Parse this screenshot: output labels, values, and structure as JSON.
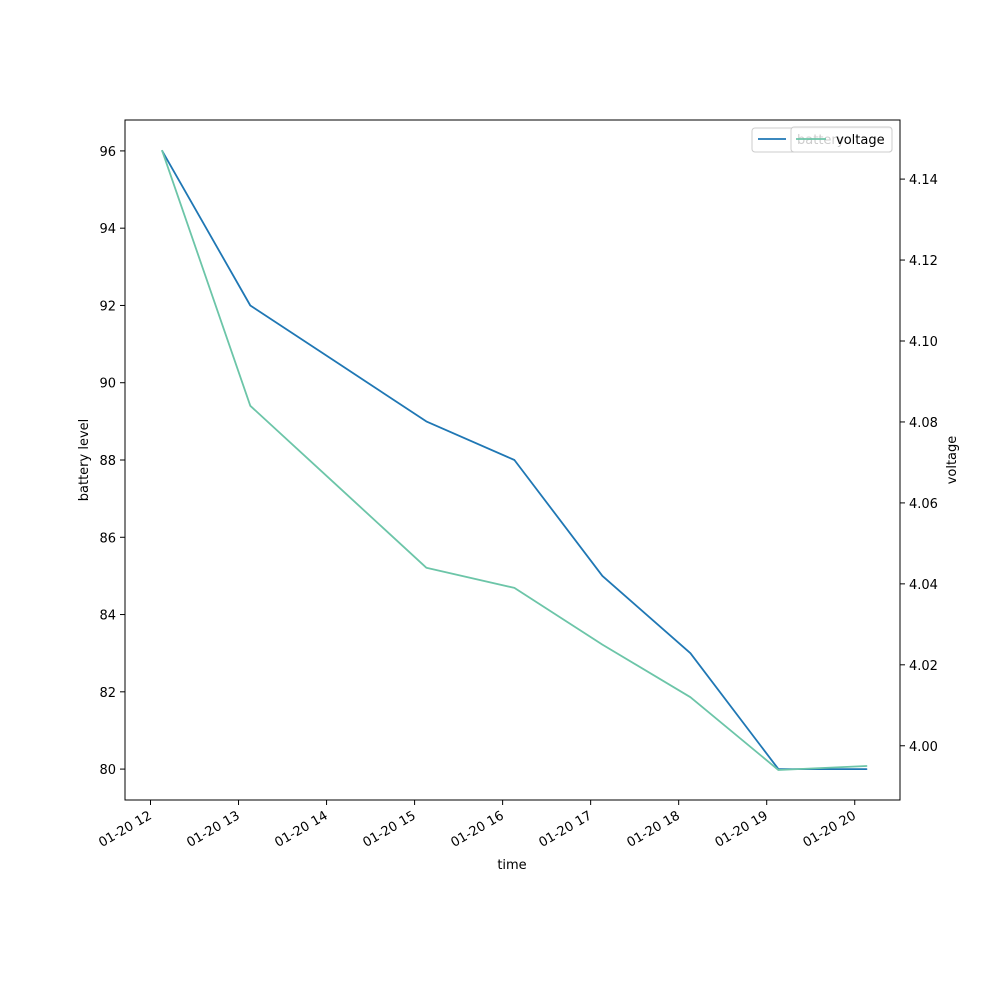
{
  "chart_data": {
    "type": "line",
    "x_type": "datetime",
    "x": [
      "01-20 12:08",
      "01-20 13:08",
      "01-20 14:08",
      "01-20 15:08",
      "01-20 16:08",
      "01-20 17:08",
      "01-20 18:08",
      "01-20 19:08",
      "01-20 20:08"
    ],
    "x_ticks": [
      "01-20 12",
      "01-20 13",
      "01-20 14",
      "01-20 15",
      "01-20 16",
      "01-20 17",
      "01-20 18",
      "01-20 19",
      "01-20 20"
    ],
    "xlabel": "time",
    "ylabel": "battery level",
    "y2label": "voltage",
    "ylim": [
      79.2,
      96.8
    ],
    "y2lim": [
      3.9866,
      4.1546
    ],
    "y_ticks": [
      80,
      82,
      84,
      86,
      88,
      90,
      92,
      94,
      96
    ],
    "y2_ticks": [
      "4.00",
      "4.02",
      "4.04",
      "4.06",
      "4.08",
      "4.10",
      "4.12",
      "4.14"
    ],
    "grid": false,
    "series": [
      {
        "name": "battery",
        "axis": "left",
        "color": "#1f77b4",
        "values": [
          96,
          92,
          90.5,
          89,
          88,
          85,
          83,
          80,
          80
        ]
      },
      {
        "name": "voltage",
        "axis": "right",
        "color": "#6cc5a8",
        "values": [
          4.147,
          4.084,
          4.064,
          4.044,
          4.039,
          4.025,
          4.012,
          3.994,
          3.995
        ]
      }
    ],
    "legends": [
      {
        "placement": "upper-right",
        "entries": [
          "battery"
        ]
      },
      {
        "placement": "upper-right",
        "entries": [
          "voltage"
        ]
      }
    ]
  }
}
